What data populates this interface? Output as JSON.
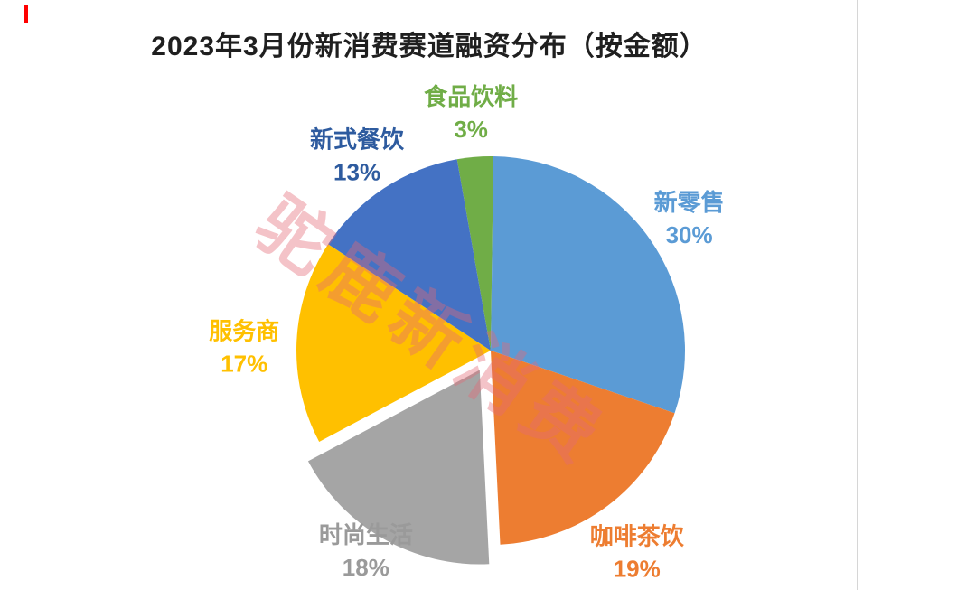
{
  "title": "2023年3月份新消费赛道融资分布（按金额）",
  "watermark": "驼鹿新消费",
  "chart_data": {
    "type": "pie",
    "title": "2023年3月份新消费赛道融资分布（按金额）",
    "unit": "percent",
    "start_angle": -10,
    "direction": "clockwise",
    "legend_position": "none",
    "labels_outside": true,
    "total": 100,
    "slices": [
      {
        "label": "食品饮料",
        "value": 3,
        "pct": "3%",
        "color": "#70AD47",
        "label_color": "#70AD47",
        "exploded": false
      },
      {
        "label": "新零售",
        "value": 30,
        "pct": "30%",
        "color": "#5B9BD5",
        "label_color": "#5B9BD5",
        "exploded": false
      },
      {
        "label": "咖啡茶饮",
        "value": 19,
        "pct": "19%",
        "color": "#ED7D31",
        "label_color": "#ED7D31",
        "exploded": false
      },
      {
        "label": "时尚生活",
        "value": 18,
        "pct": "18%",
        "color": "#A5A5A5",
        "label_color": "#9A9A9A",
        "exploded": true
      },
      {
        "label": "服务商",
        "value": 17,
        "pct": "17%",
        "color": "#FFC000",
        "label_color": "#FFC000",
        "exploded": false
      },
      {
        "label": "新式餐饮",
        "value": 13,
        "pct": "13%",
        "color": "#4472C4",
        "label_color": "#2E5B9F",
        "exploded": false
      }
    ]
  }
}
